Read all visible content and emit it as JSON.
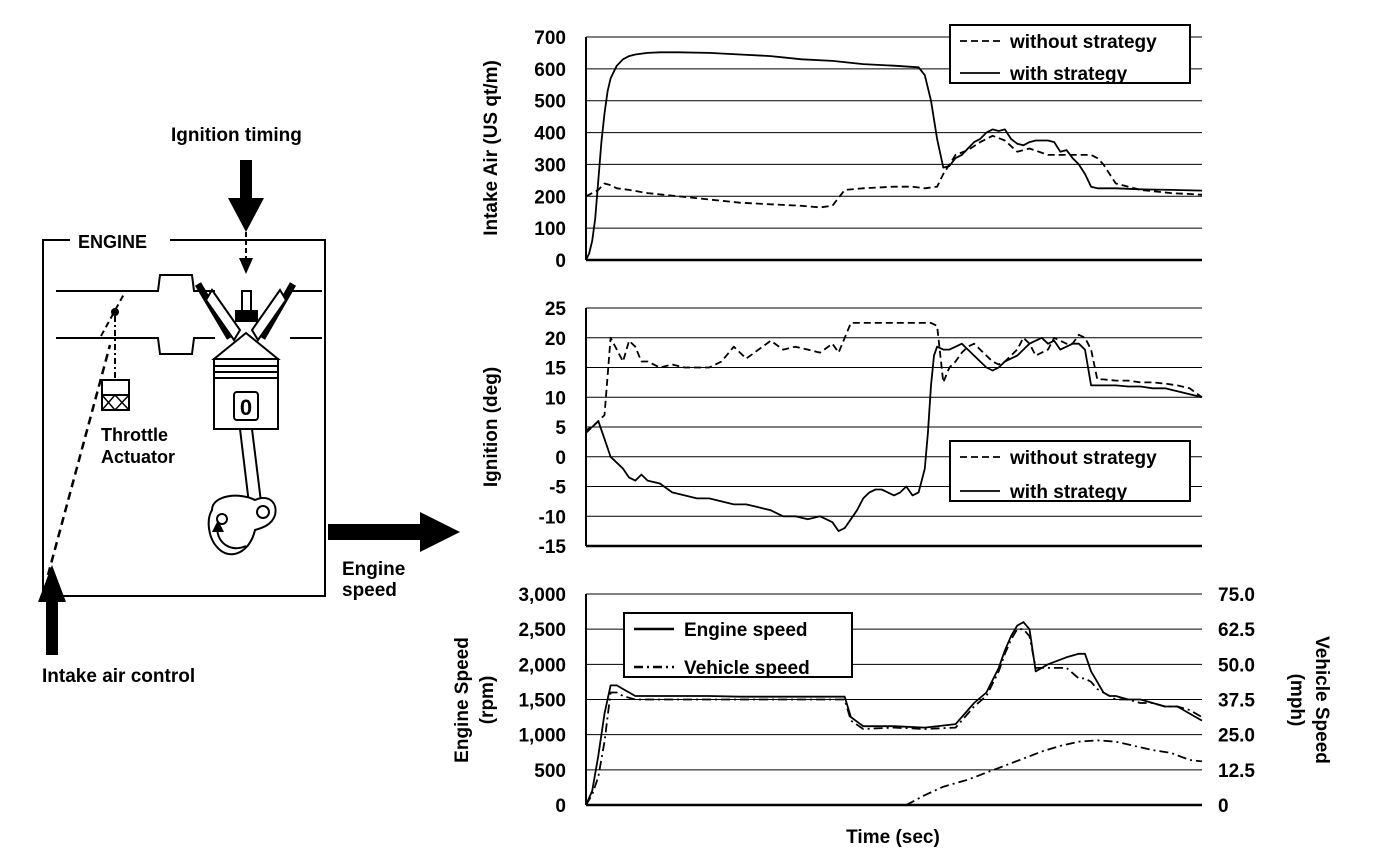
{
  "diagram": {
    "engine_label": "ENGINE",
    "ignition_label": "Ignition timing",
    "throttle_label_line1": "Throttle",
    "throttle_label_line2": "Actuator",
    "piston_mark": "0",
    "engine_speed_line1": "Engine",
    "engine_speed_line2": "speed",
    "intake_control_label": "Intake air control"
  },
  "x_label": "Time (sec)",
  "chart_data": [
    {
      "type": "line",
      "ylabel": "Intake Air (US qt/m)",
      "ylim": [
        0,
        700
      ],
      "yticks": [
        "0",
        "100",
        "200",
        "300",
        "400",
        "500",
        "600",
        "700"
      ],
      "xlim": [
        0,
        100
      ],
      "grid": true,
      "legend": "top-right",
      "series": [
        {
          "name": "without strategy",
          "style": "dashed",
          "x": [
            0,
            1,
            2,
            3,
            4,
            5,
            7,
            10,
            15,
            20,
            25,
            30,
            35,
            38,
            40,
            42,
            45,
            50,
            53,
            55,
            57,
            58,
            60,
            62,
            64,
            66,
            68,
            70,
            72,
            75,
            78,
            80,
            82,
            83,
            84,
            86,
            90,
            95,
            100
          ],
          "y": [
            200,
            210,
            220,
            240,
            235,
            225,
            220,
            210,
            200,
            190,
            180,
            175,
            170,
            165,
            170,
            220,
            225,
            230,
            230,
            225,
            230,
            270,
            330,
            345,
            370,
            390,
            375,
            340,
            350,
            330,
            330,
            330,
            330,
            320,
            300,
            240,
            220,
            210,
            205
          ]
        },
        {
          "name": "with strategy",
          "style": "solid",
          "x": [
            0,
            0.5,
            1,
            1.5,
            2,
            2.5,
            3,
            3.5,
            4,
            5,
            6,
            7,
            8,
            10,
            12,
            15,
            20,
            25,
            30,
            35,
            40,
            45,
            50,
            54,
            55,
            56,
            57,
            58,
            59,
            60,
            61,
            62,
            63,
            64,
            65,
            66,
            67,
            68,
            69,
            70,
            71,
            72,
            73,
            74,
            75,
            76,
            77,
            78,
            79,
            80,
            81,
            82,
            83,
            84,
            85,
            86,
            90,
            95,
            100
          ],
          "y": [
            0,
            20,
            60,
            130,
            250,
            370,
            460,
            530,
            570,
            610,
            630,
            640,
            645,
            650,
            652,
            652,
            650,
            645,
            640,
            630,
            625,
            615,
            610,
            605,
            580,
            500,
            380,
            290,
            295,
            320,
            330,
            350,
            370,
            380,
            400,
            410,
            405,
            410,
            380,
            365,
            360,
            370,
            375,
            375,
            375,
            370,
            340,
            345,
            320,
            300,
            270,
            230,
            225,
            225,
            225,
            225,
            222,
            220,
            218
          ]
        }
      ]
    },
    {
      "type": "line",
      "ylabel": "Ignition (deg)",
      "ylim": [
        -15,
        25
      ],
      "yticks": [
        "-15",
        "-10",
        "-5",
        "0",
        "5",
        "10",
        "15",
        "20",
        "25"
      ],
      "xlim": [
        0,
        100
      ],
      "grid": true,
      "legend": "right",
      "series": [
        {
          "name": "without strategy",
          "style": "dashed",
          "x": [
            0,
            1,
            2,
            3,
            4,
            5,
            6,
            7,
            8,
            9,
            10,
            12,
            14,
            16,
            18,
            20,
            22,
            24,
            26,
            28,
            30,
            32,
            34,
            36,
            38,
            40,
            41,
            43,
            45,
            47,
            49,
            51,
            53,
            55,
            56,
            57,
            58,
            59,
            60,
            61,
            62,
            63,
            64,
            65,
            66,
            67,
            68,
            69,
            70,
            71,
            72,
            73,
            74,
            75,
            76,
            77,
            78,
            79,
            80,
            81,
            82,
            83,
            84,
            86,
            88,
            90,
            92,
            94,
            96,
            98,
            100
          ],
          "y": [
            4,
            5,
            6,
            7,
            20,
            18,
            16,
            19.5,
            18.5,
            16,
            16,
            15,
            15.5,
            15,
            15,
            15,
            16,
            18.5,
            16.5,
            18,
            19.5,
            18,
            18.5,
            18,
            17.5,
            19,
            17.5,
            22.5,
            22.5,
            22.5,
            22.5,
            22.5,
            22.5,
            22.5,
            22.5,
            22,
            12.5,
            15,
            16,
            17.5,
            18.5,
            19,
            18,
            17,
            16,
            15.5,
            16,
            17,
            18,
            20,
            19,
            17,
            17.5,
            18,
            20,
            19.5,
            19,
            19,
            20.5,
            20,
            18,
            13,
            13,
            12.8,
            12.8,
            12.5,
            12.5,
            12.3,
            12,
            11.5,
            10
          ]
        },
        {
          "name": "with strategy",
          "style": "solid",
          "x": [
            0,
            1,
            2,
            3,
            4,
            5,
            6,
            7,
            8,
            9,
            10,
            12,
            14,
            16,
            18,
            20,
            22,
            24,
            26,
            28,
            30,
            32,
            34,
            36,
            38,
            40,
            41,
            42,
            43,
            44,
            45,
            46,
            47,
            48,
            49,
            50,
            51,
            52,
            53,
            54,
            54.5,
            55,
            55.5,
            56,
            56.5,
            57,
            58,
            59,
            60,
            61,
            62,
            63,
            64,
            65,
            66,
            67,
            68,
            69,
            70,
            71,
            72,
            73,
            74,
            75,
            76,
            77,
            78,
            79,
            80,
            81,
            82,
            83,
            84,
            86,
            88,
            90,
            92,
            94,
            96,
            98,
            100
          ],
          "y": [
            4.5,
            5,
            6,
            3,
            0,
            -1,
            -2,
            -3.5,
            -4,
            -3,
            -4,
            -4.5,
            -6,
            -6.5,
            -7,
            -7,
            -7.5,
            -8,
            -8,
            -8.5,
            -9,
            -10,
            -10,
            -10.5,
            -10,
            -11,
            -12.5,
            -12,
            -10.5,
            -9,
            -7,
            -6,
            -5.5,
            -5.5,
            -6,
            -6.5,
            -6,
            -5,
            -6.5,
            -6,
            -4,
            -2,
            4,
            12,
            17,
            18.5,
            18,
            18,
            18.5,
            19,
            18,
            17,
            16,
            15,
            14.5,
            15,
            16,
            16.5,
            17,
            18,
            19,
            19.5,
            20,
            19,
            19.5,
            18,
            18.5,
            19,
            19,
            18,
            12,
            12,
            12,
            12,
            11.8,
            11.8,
            11.5,
            11.5,
            11,
            10.5,
            10
          ]
        }
      ]
    },
    {
      "type": "line",
      "ylabel": "Engine Speed (rpm)",
      "ylim": [
        0,
        3000
      ],
      "yticks": [
        "0",
        "500",
        "1,000",
        "1,500",
        "2,000",
        "2,500",
        "3,000"
      ],
      "y2label": "Vehicle Speed (mph)",
      "y2lim": [
        0,
        75
      ],
      "y2ticks": [
        "0",
        "12.5",
        "25.0",
        "37.5",
        "50.0",
        "62.5",
        "75.0"
      ],
      "xlim": [
        0,
        100
      ],
      "grid": true,
      "legend": "top-left",
      "series": [
        {
          "name": "Engine speed",
          "style": "solid",
          "axis": "left",
          "x": [
            0,
            1,
            2,
            3,
            4,
            5,
            6,
            8,
            10,
            15,
            20,
            25,
            30,
            35,
            40,
            42,
            43,
            45,
            50,
            55,
            60,
            63,
            65,
            67,
            68,
            69,
            70,
            71,
            72,
            73,
            75,
            78,
            80,
            81,
            82,
            83,
            84,
            85,
            86,
            88,
            90,
            92,
            94,
            96,
            98,
            100
          ],
          "y": [
            0,
            200,
            700,
            1300,
            1700,
            1700,
            1650,
            1550,
            1550,
            1550,
            1550,
            1540,
            1540,
            1540,
            1540,
            1540,
            1250,
            1120,
            1120,
            1100,
            1150,
            1450,
            1600,
            1950,
            2200,
            2400,
            2550,
            2600,
            2500,
            1900,
            2000,
            2100,
            2150,
            2150,
            1900,
            1750,
            1600,
            1550,
            1550,
            1500,
            1500,
            1450,
            1400,
            1400,
            1300,
            1200
          ]
        },
        {
          "name": "Vehicle speed",
          "style": "dashdot",
          "axis": "left",
          "x": [
            0,
            1,
            2,
            3,
            4,
            5,
            6,
            8,
            10,
            15,
            20,
            25,
            30,
            35,
            40,
            42,
            43,
            45,
            50,
            55,
            60,
            63,
            65,
            67,
            68,
            69,
            70,
            71,
            72,
            73,
            75,
            78,
            80,
            81,
            82,
            83,
            84,
            85,
            86,
            88,
            90,
            92,
            94,
            96,
            98,
            100
          ],
          "y": [
            0,
            150,
            400,
            900,
            1600,
            1600,
            1550,
            1500,
            1500,
            1500,
            1500,
            1500,
            1500,
            1500,
            1500,
            1500,
            1200,
            1080,
            1100,
            1080,
            1100,
            1400,
            1550,
            1900,
            2150,
            2350,
            2500,
            2500,
            2400,
            1950,
            1950,
            1950,
            1800,
            1800,
            1750,
            1650,
            1600,
            1550,
            1500,
            1500,
            1450,
            1450,
            1400,
            1400,
            1350,
            1250
          ]
        },
        {
          "name": "",
          "style": "dashdot",
          "axis": "right",
          "x": [
            52,
            55,
            58,
            62,
            65,
            68,
            71,
            74,
            77,
            80,
            83,
            86,
            89,
            92,
            95,
            98,
            100
          ],
          "y": [
            0,
            3.5,
            6.5,
            9,
            11.5,
            14,
            16.5,
            19,
            21,
            22.5,
            23,
            22.5,
            21,
            19.5,
            18.5,
            16,
            15.5
          ]
        }
      ]
    }
  ]
}
